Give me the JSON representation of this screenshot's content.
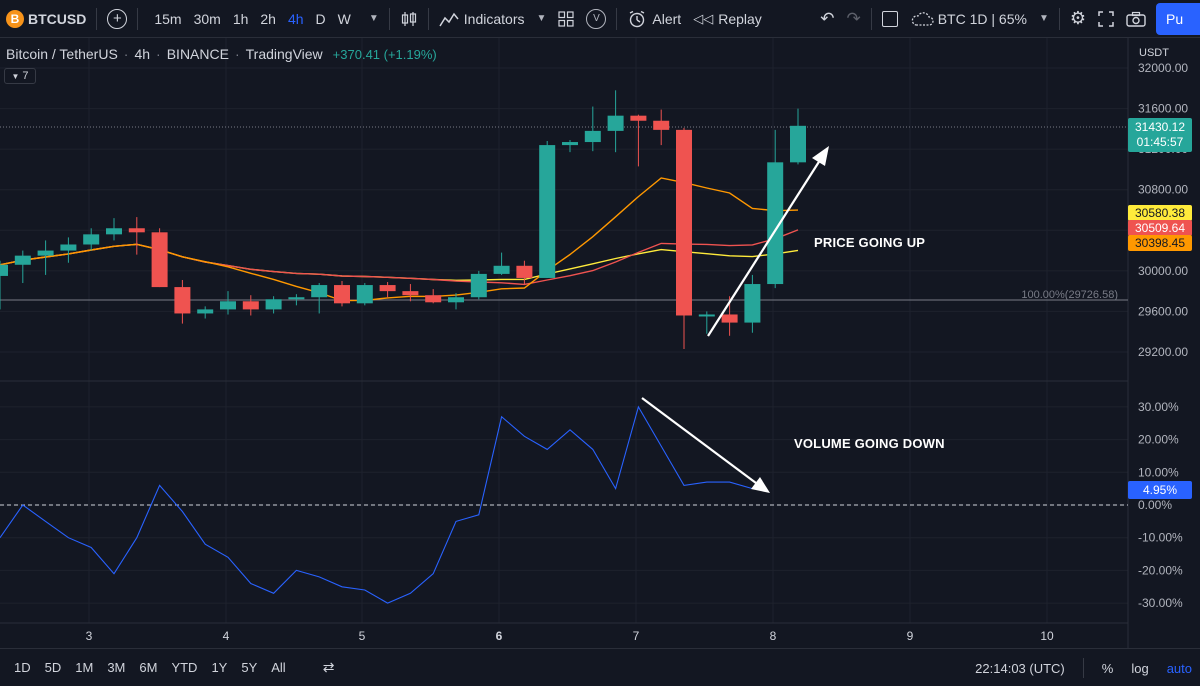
{
  "toolbar": {
    "symbol": "BTCUSD",
    "symbol_icon": "B",
    "timeframes": [
      "15m",
      "30m",
      "1h",
      "2h",
      "4h",
      "D",
      "W"
    ],
    "active_timeframe": "4h",
    "indicators_label": "Indicators",
    "alert_label": "Alert",
    "replay_label": "Replay",
    "compare_label": "BTC 1D | 65%",
    "publish_label": "Pu"
  },
  "legend": {
    "pair": "Bitcoin / TetherUS",
    "interval": "4h",
    "exchange": "BINANCE",
    "source": "TradingView",
    "change": "+370.41 (+1.19%)",
    "indicator_badge": "7"
  },
  "price_axis": {
    "currency": "USDT",
    "ticks": [
      "32000.00",
      "31600.00",
      "31200.00",
      "30800.00",
      "30400.00",
      "30000.00",
      "29600.00",
      "29200.00"
    ],
    "current_price": "31430.12",
    "countdown": "01:45:57",
    "ma_labels": [
      {
        "value": "30580.38",
        "color": "#ffeb3b",
        "text_color": "#131722"
      },
      {
        "value": "30509.64",
        "color": "#ef5350",
        "text_color": "#ffffff"
      },
      {
        "value": "30398.45",
        "color": "#ff9800",
        "text_color": "#131722"
      }
    ],
    "fib_label": "100.00%(29726.58)"
  },
  "indicator_axis": {
    "ticks": [
      "30.00%",
      "20.00%",
      "10.00%",
      "0.00%",
      "-10.00%",
      "-20.00%",
      "-30.00%"
    ],
    "current_value": "4.95%"
  },
  "annotations": {
    "price": "PRICE GOING UP",
    "volume": "VOLUME GOING DOWN"
  },
  "time_axis": {
    "labels": [
      "3",
      "4",
      "5",
      "6",
      "7",
      "8",
      "9",
      "10"
    ],
    "bold_label": "6"
  },
  "bottombar": {
    "ranges": [
      "1D",
      "5D",
      "1M",
      "3M",
      "6M",
      "YTD",
      "1Y",
      "5Y",
      "All"
    ],
    "time": "22:14:03 (UTC)",
    "percent": "%",
    "log": "log",
    "auto": "auto"
  },
  "colors": {
    "up": "#26a69a",
    "down": "#ef5350",
    "ma_yellow": "#ffeb3b",
    "ma_red": "#ef5350",
    "ma_orange": "#ff9800",
    "indicator_line": "#2962ff",
    "accent": "#2962ff"
  },
  "chart_data": {
    "type": "candlestick",
    "price_scale": {
      "min": 29200,
      "max": 32000
    },
    "candles": [
      {
        "x": "2-20",
        "o": 29950,
        "h": 30100,
        "l": 29620,
        "c": 30060
      },
      {
        "x": "2-21",
        "o": 30060,
        "h": 30200,
        "l": 29880,
        "c": 30150
      },
      {
        "x": "2-22",
        "o": 30150,
        "h": 30300,
        "l": 29960,
        "c": 30200
      },
      {
        "x": "2-23",
        "o": 30200,
        "h": 30330,
        "l": 30080,
        "c": 30260
      },
      {
        "x": "2-24",
        "o": 30260,
        "h": 30420,
        "l": 30200,
        "c": 30360
      },
      {
        "x": "3-1",
        "o": 30360,
        "h": 30520,
        "l": 30300,
        "c": 30420
      },
      {
        "x": "3-2",
        "o": 30420,
        "h": 30530,
        "l": 30160,
        "c": 30380
      },
      {
        "x": "3-3",
        "o": 30380,
        "h": 30420,
        "l": 29840,
        "c": 29840
      },
      {
        "x": "3-4",
        "o": 29840,
        "h": 29910,
        "l": 29480,
        "c": 29580
      },
      {
        "x": "3-5",
        "o": 29580,
        "h": 29650,
        "l": 29530,
        "c": 29620
      },
      {
        "x": "3-6",
        "o": 29620,
        "h": 29800,
        "l": 29570,
        "c": 29700
      },
      {
        "x": "4-1",
        "o": 29700,
        "h": 29760,
        "l": 29560,
        "c": 29620
      },
      {
        "x": "4-2",
        "o": 29620,
        "h": 29750,
        "l": 29580,
        "c": 29720
      },
      {
        "x": "4-3",
        "o": 29720,
        "h": 29770,
        "l": 29660,
        "c": 29740
      },
      {
        "x": "4-4",
        "o": 29740,
        "h": 29880,
        "l": 29580,
        "c": 29860
      },
      {
        "x": "4-5",
        "o": 29860,
        "h": 29900,
        "l": 29650,
        "c": 29680
      },
      {
        "x": "4-6",
        "o": 29680,
        "h": 29880,
        "l": 29660,
        "c": 29860
      },
      {
        "x": "5-1",
        "o": 29860,
        "h": 29890,
        "l": 29740,
        "c": 29800
      },
      {
        "x": "5-2",
        "o": 29800,
        "h": 29870,
        "l": 29700,
        "c": 29760
      },
      {
        "x": "5-3",
        "o": 29760,
        "h": 29820,
        "l": 29680,
        "c": 29690
      },
      {
        "x": "5-4",
        "o": 29690,
        "h": 29780,
        "l": 29620,
        "c": 29740
      },
      {
        "x": "5-5",
        "o": 29740,
        "h": 30000,
        "l": 29720,
        "c": 29970
      },
      {
        "x": "5-6",
        "o": 29970,
        "h": 30180,
        "l": 29960,
        "c": 30050
      },
      {
        "x": "6-1",
        "o": 30050,
        "h": 30100,
        "l": 29870,
        "c": 29930
      },
      {
        "x": "6-2",
        "o": 29930,
        "h": 31280,
        "l": 29930,
        "c": 31240
      },
      {
        "x": "6-3",
        "o": 31240,
        "h": 31290,
        "l": 31170,
        "c": 31270
      },
      {
        "x": "6-4",
        "o": 31270,
        "h": 31620,
        "l": 31180,
        "c": 31380
      },
      {
        "x": "6-5",
        "o": 31380,
        "h": 31780,
        "l": 31170,
        "c": 31530
      },
      {
        "x": "6-6",
        "o": 31530,
        "h": 31540,
        "l": 31030,
        "c": 31480
      },
      {
        "x": "7-1",
        "o": 31480,
        "h": 31590,
        "l": 31240,
        "c": 31390
      },
      {
        "x": "7-2",
        "o": 31390,
        "h": 31410,
        "l": 29230,
        "c": 29560
      },
      {
        "x": "7-3",
        "o": 29560,
        "h": 29600,
        "l": 29380,
        "c": 29570
      },
      {
        "x": "7-4",
        "o": 29570,
        "h": 29750,
        "l": 29360,
        "c": 29490
      },
      {
        "x": "7-5",
        "o": 29490,
        "h": 29960,
        "l": 29390,
        "c": 29870
      },
      {
        "x": "7-6",
        "o": 29870,
        "h": 31390,
        "l": 29830,
        "c": 31070
      },
      {
        "x": "8-1",
        "o": 31070,
        "h": 31600,
        "l": 31050,
        "c": 31430
      }
    ],
    "indicator": {
      "type": "line",
      "scale": {
        "min": -30,
        "max": 30
      },
      "values": [
        -10,
        0,
        -5,
        -10,
        -13,
        -21,
        -10,
        6,
        -2,
        -12,
        -16,
        -24,
        -27,
        -20,
        -22,
        -25,
        -26,
        -30,
        -27,
        -21,
        -5,
        -3,
        27,
        21,
        17,
        23,
        17,
        5,
        30,
        18,
        6,
        7,
        7,
        5
      ]
    }
  }
}
